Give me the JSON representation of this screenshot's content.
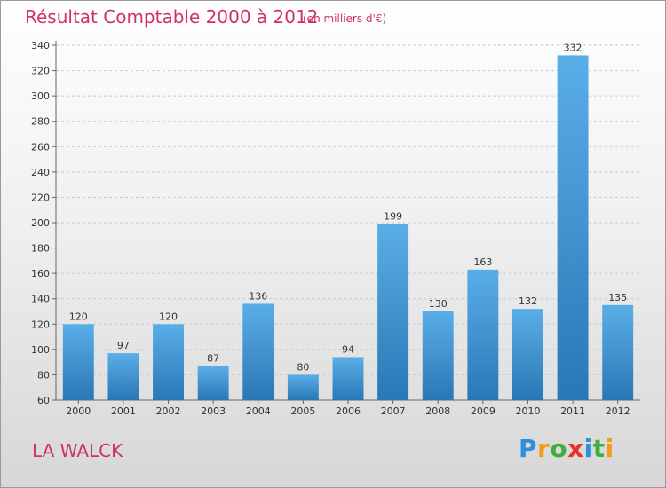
{
  "header": {
    "title": "Résultat Comptable 2000 à 2012",
    "subtitle": "(en milliers d'€)"
  },
  "footer": {
    "town": "LA WALCK"
  },
  "logo": {
    "letters": [
      "P",
      "r",
      "o",
      "x",
      "i",
      "t",
      "i"
    ],
    "colors": [
      "#2f8fd8",
      "#f39c1b",
      "#3fae3f",
      "#e8312a",
      "#2f8fd8",
      "#3fae3f",
      "#f39c1b"
    ]
  },
  "colors": {
    "bar_light": "#5aaee8",
    "bar_dark": "#2a77b5",
    "grid": "#c8c8c8",
    "text": "#333333",
    "accent": "#d0306a"
  },
  "chart_data": {
    "type": "bar",
    "title": "Résultat Comptable 2000 à 2012",
    "subtitle": "(en milliers d'€)",
    "xlabel": "",
    "ylabel": "",
    "categories": [
      "2000",
      "2001",
      "2002",
      "2003",
      "2004",
      "2005",
      "2006",
      "2007",
      "2008",
      "2009",
      "2010",
      "2011",
      "2012"
    ],
    "values": [
      120,
      97,
      120,
      87,
      136,
      80,
      94,
      199,
      130,
      163,
      132,
      332,
      135
    ],
    "ylim": [
      60,
      340
    ],
    "yticks": [
      60,
      80,
      100,
      120,
      140,
      160,
      180,
      200,
      220,
      240,
      260,
      280,
      300,
      320,
      340
    ],
    "grid": true
  }
}
